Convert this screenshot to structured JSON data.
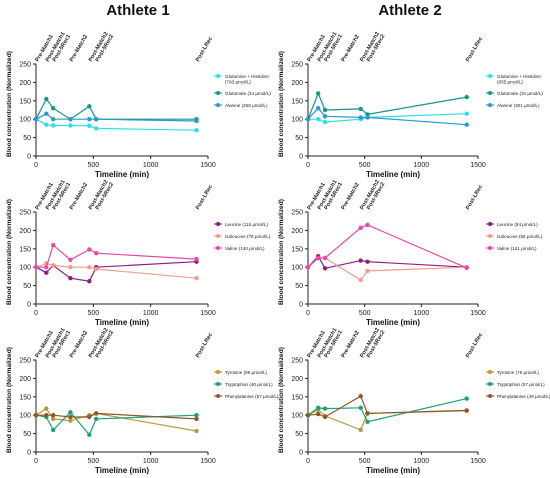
{
  "column_titles": [
    "Athlete 1",
    "Athlete 2"
  ],
  "phase_labels": [
    {
      "label": "Pre-Match1",
      "t": 0
    },
    {
      "label": "Post-Match1",
      "t": 90
    },
    {
      "label": "Post-5Rec1",
      "t": 150
    },
    {
      "label": "Pre-Match2",
      "t": 300
    },
    {
      "label": "Post-Match2",
      "t": 465
    },
    {
      "label": "Post-5Rec2",
      "t": 525
    },
    {
      "label": "Post-LRec",
      "t": 1400
    }
  ],
  "colors": {
    "cyan": "#2de0e6",
    "teal": "#14968a",
    "blue": "#2a9bc9",
    "purple": "#8b1f88",
    "pink_light": "#f29a8e",
    "magenta": "#e64aa8",
    "gold": "#b59a3c",
    "green": "#1aa36e",
    "brown": "#8c5a2a",
    "axis": "#222222"
  },
  "chart_data": [
    {
      "type": "line",
      "athlete": "Athlete 1",
      "xlabel": "Timeline (min)",
      "ylabel": "Blood concentration (Normalized)",
      "xlim": [
        0,
        1500
      ],
      "ylim": [
        0,
        250
      ],
      "xticks": [
        0,
        500,
        1000,
        1500
      ],
      "yticks": [
        0,
        50,
        100,
        150,
        200,
        250
      ],
      "legend": "right",
      "x": [
        0,
        90,
        150,
        300,
        465,
        525,
        1400
      ],
      "series": [
        {
          "name": "Glutamine + Histidine (793 µmol/L)",
          "color": "cyan",
          "values": [
            100,
            85,
            83,
            83,
            82,
            75,
            70
          ]
        },
        {
          "name": "Glutamate (44 µmol/L)",
          "color": "teal",
          "values": [
            100,
            155,
            130,
            100,
            135,
            100,
            100
          ]
        },
        {
          "name": "Alanine (258 µmol/L)",
          "color": "blue",
          "values": [
            100,
            115,
            100,
            100,
            100,
            100,
            95
          ]
        }
      ]
    },
    {
      "type": "line",
      "athlete": "Athlete 2",
      "xlabel": "Timeline (min)",
      "ylabel": "Blood concentration (Normalized)",
      "xlim": [
        0,
        1500
      ],
      "ylim": [
        0,
        250
      ],
      "xticks": [
        0,
        500,
        1000,
        1500
      ],
      "yticks": [
        0,
        50,
        100,
        150,
        200,
        250
      ],
      "legend": "right",
      "x": [
        0,
        90,
        150,
        465,
        525,
        1400
      ],
      "series": [
        {
          "name": "Glutamine + Histidine (655 µmol/L)",
          "color": "cyan",
          "values": [
            100,
            100,
            92,
            100,
            105,
            115
          ]
        },
        {
          "name": "Glutamate (34 µmol/L)",
          "color": "teal",
          "values": [
            100,
            170,
            125,
            128,
            113,
            160
          ]
        },
        {
          "name": "Alanine (301 µmol/L)",
          "color": "blue",
          "values": [
            100,
            130,
            108,
            105,
            105,
            85
          ]
        }
      ]
    },
    {
      "type": "line",
      "athlete": "Athlete 1",
      "xlabel": "Timeline (min)",
      "ylabel": "Blood concentration (Normalized)",
      "xlim": [
        0,
        1500
      ],
      "ylim": [
        0,
        250
      ],
      "xticks": [
        0,
        500,
        1000,
        1500
      ],
      "yticks": [
        0,
        50,
        100,
        150,
        200,
        250
      ],
      "legend": "right",
      "x": [
        0,
        90,
        150,
        300,
        465,
        525,
        1400
      ],
      "series": [
        {
          "name": "Leucine (115 µmol/L)",
          "color": "purple",
          "values": [
            100,
            85,
            105,
            70,
            62,
            100,
            115
          ]
        },
        {
          "name": "Isoleucine (76 µmol/L)",
          "color": "pink_light",
          "values": [
            100,
            110,
            105,
            100,
            100,
            95,
            70
          ]
        },
        {
          "name": "Valine (140 µmol/L)",
          "color": "magenta",
          "values": [
            100,
            100,
            160,
            120,
            148,
            138,
            122
          ]
        }
      ]
    },
    {
      "type": "line",
      "athlete": "Athlete 2",
      "xlabel": "Timeline (min)",
      "ylabel": "Blood concentration (Normalized)",
      "xlim": [
        0,
        1500
      ],
      "ylim": [
        0,
        250
      ],
      "xticks": [
        0,
        500,
        1000,
        1500
      ],
      "yticks": [
        0,
        50,
        100,
        150,
        200,
        250
      ],
      "legend": "right",
      "x": [
        0,
        90,
        150,
        465,
        525,
        1400
      ],
      "series": [
        {
          "name": "Leucine (84 µmol/L)",
          "color": "purple",
          "values": [
            100,
            130,
            97,
            118,
            115,
            100
          ]
        },
        {
          "name": "Isoleucine (55 µmol/L)",
          "color": "pink_light",
          "values": [
            100,
            125,
            125,
            65,
            90,
            100
          ]
        },
        {
          "name": "Valine (141 µmol/L)",
          "color": "magenta",
          "values": [
            100,
            125,
            125,
            207,
            215,
            98
          ]
        }
      ]
    },
    {
      "type": "line",
      "athlete": "Athlete 1",
      "xlabel": "Timeline (min)",
      "ylabel": "Blood concentration (Normalized)",
      "xlim": [
        0,
        1500
      ],
      "ylim": [
        0,
        250
      ],
      "xticks": [
        0,
        500,
        1000,
        1500
      ],
      "yticks": [
        0,
        50,
        100,
        150,
        200,
        250
      ],
      "legend": "right",
      "x": [
        0,
        90,
        150,
        300,
        465,
        525,
        1400
      ],
      "series": [
        {
          "name": "Tyrosine (96 µmol/L)",
          "color": "gold",
          "values": [
            100,
            118,
            90,
            85,
            100,
            105,
            57
          ]
        },
        {
          "name": "Tryptophan (40 µmol/L)",
          "color": "green",
          "values": [
            100,
            95,
            60,
            108,
            47,
            90,
            100
          ]
        },
        {
          "name": "Phenylalanine (57 µmol/L)",
          "color": "brown",
          "values": [
            100,
            100,
            100,
            95,
            95,
            105,
            90
          ]
        }
      ]
    },
    {
      "type": "line",
      "athlete": "Athlete 2",
      "xlabel": "Timeline (min)",
      "ylabel": "Blood concentration (Normalized)",
      "xlim": [
        0,
        1500
      ],
      "ylim": [
        0,
        250
      ],
      "xticks": [
        0,
        500,
        1000,
        1500
      ],
      "yticks": [
        0,
        50,
        100,
        150,
        200,
        250
      ],
      "legend": "right",
      "x": [
        0,
        90,
        150,
        465,
        525,
        1400
      ],
      "series": [
        {
          "name": "Tyrosine (75 µmol/L)",
          "color": "gold",
          "values": [
            100,
            115,
            98,
            60,
            105,
            112
          ]
        },
        {
          "name": "Tryptophan (57 µmol/L)",
          "color": "green",
          "values": [
            100,
            120,
            118,
            120,
            82,
            145
          ]
        },
        {
          "name": "Phenylalanine (49 µmol/L)",
          "color": "brown",
          "values": [
            100,
            103,
            95,
            152,
            105,
            113
          ]
        }
      ]
    }
  ]
}
